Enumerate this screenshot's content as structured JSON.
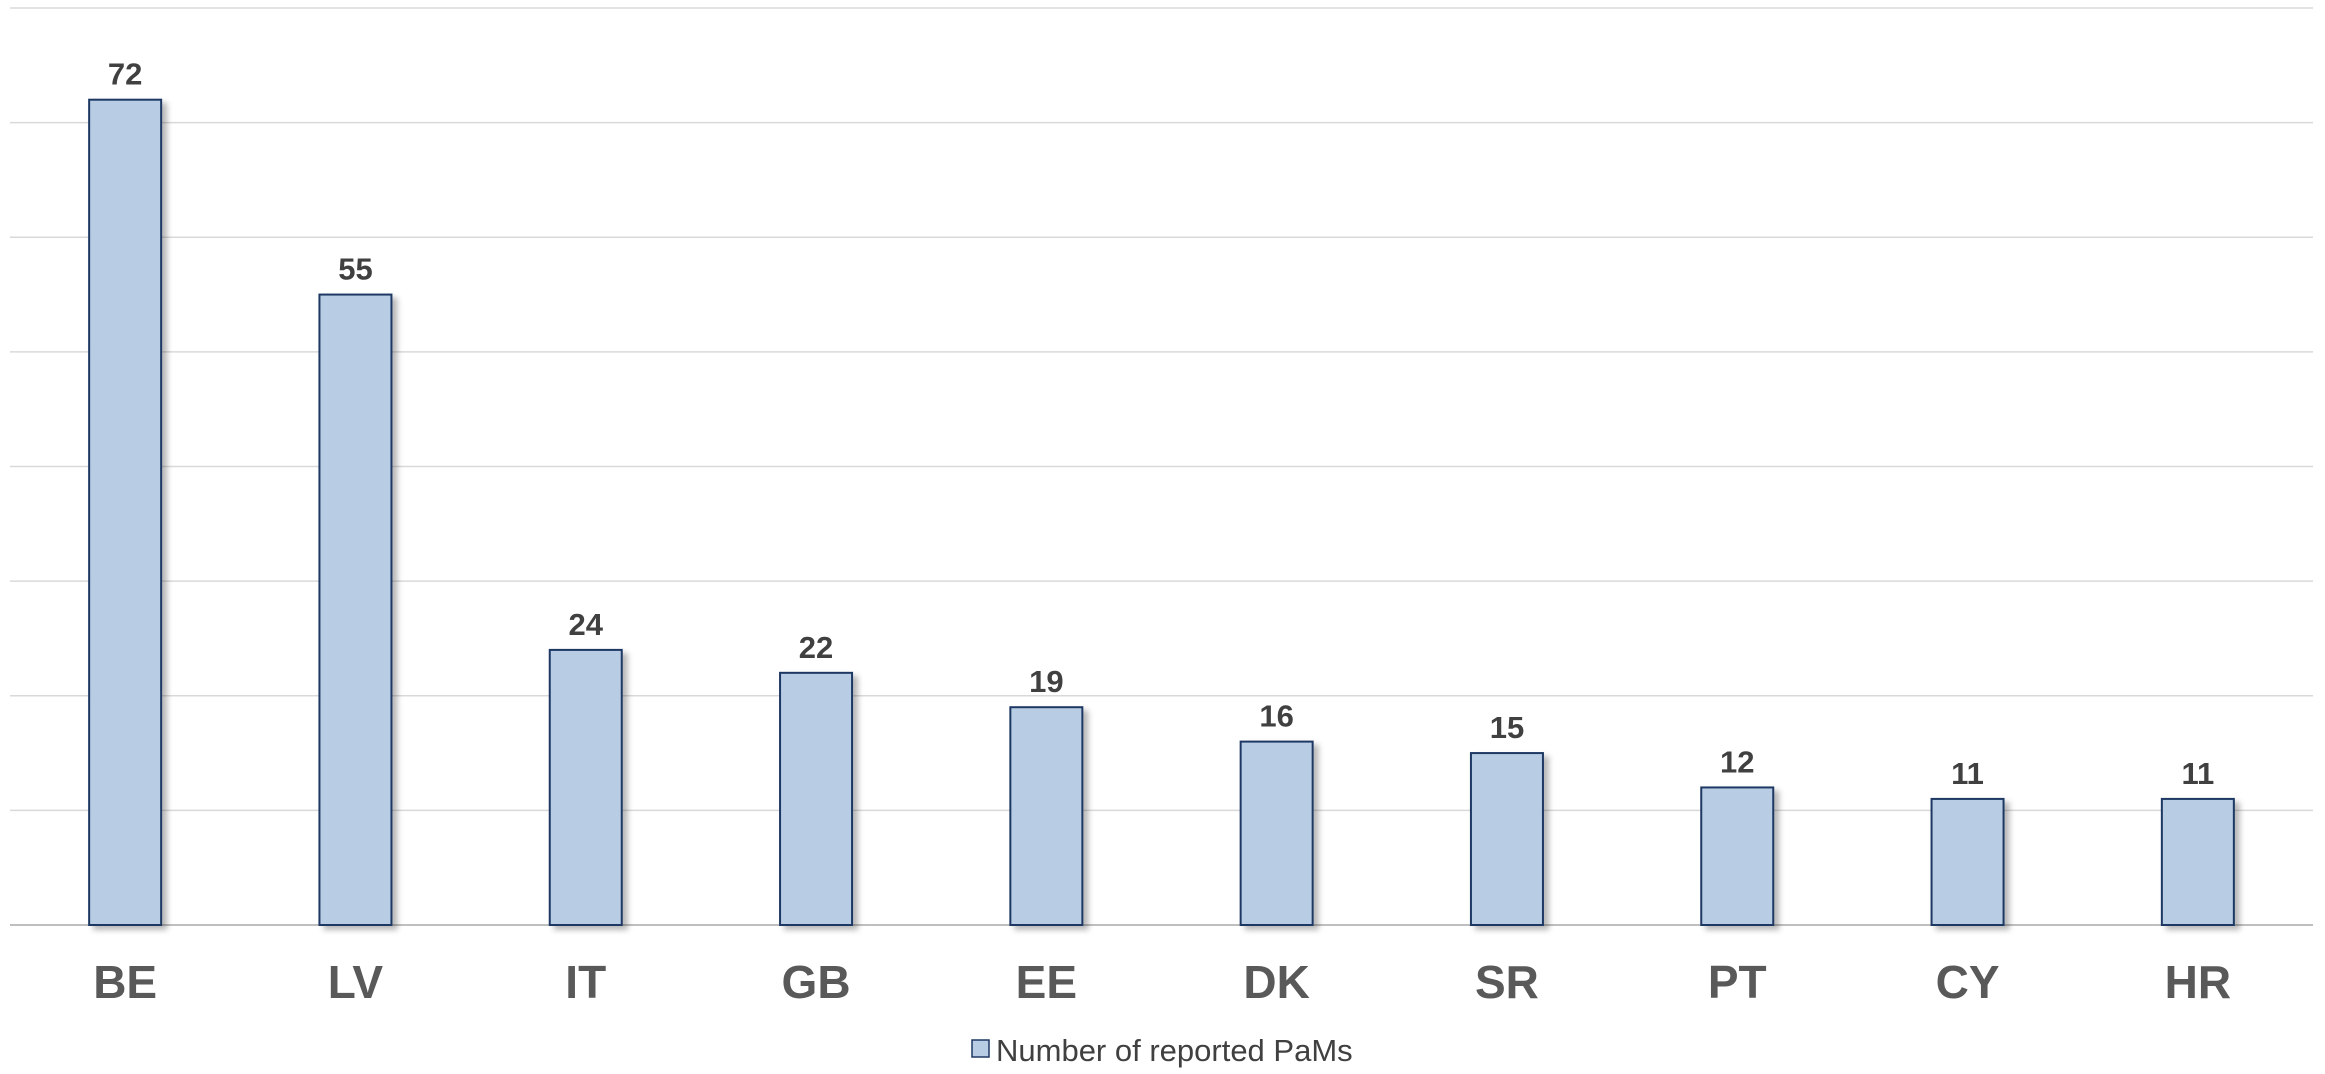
{
  "chart_data": {
    "type": "bar",
    "categories": [
      "BE",
      "LV",
      "IT",
      "GB",
      "EE",
      "DK",
      "SR",
      "PT",
      "CY",
      "HR"
    ],
    "series": [
      {
        "name": "Number of reported PaMs",
        "values": [
          72,
          55,
          24,
          22,
          19,
          16,
          15,
          12,
          11,
          11
        ]
      }
    ],
    "title": "",
    "xlabel": "",
    "ylabel": "",
    "ylim": [
      0,
      80
    ],
    "y_ticks_shown": false,
    "grid": true,
    "legend": "bottom-center",
    "data_labels": true,
    "colors": {
      "bar_fill": "#b8cce4",
      "bar_stroke": "#1f3864",
      "grid": "#d9d9d9",
      "value_label": "#404040",
      "tick_label": "#595959"
    }
  }
}
